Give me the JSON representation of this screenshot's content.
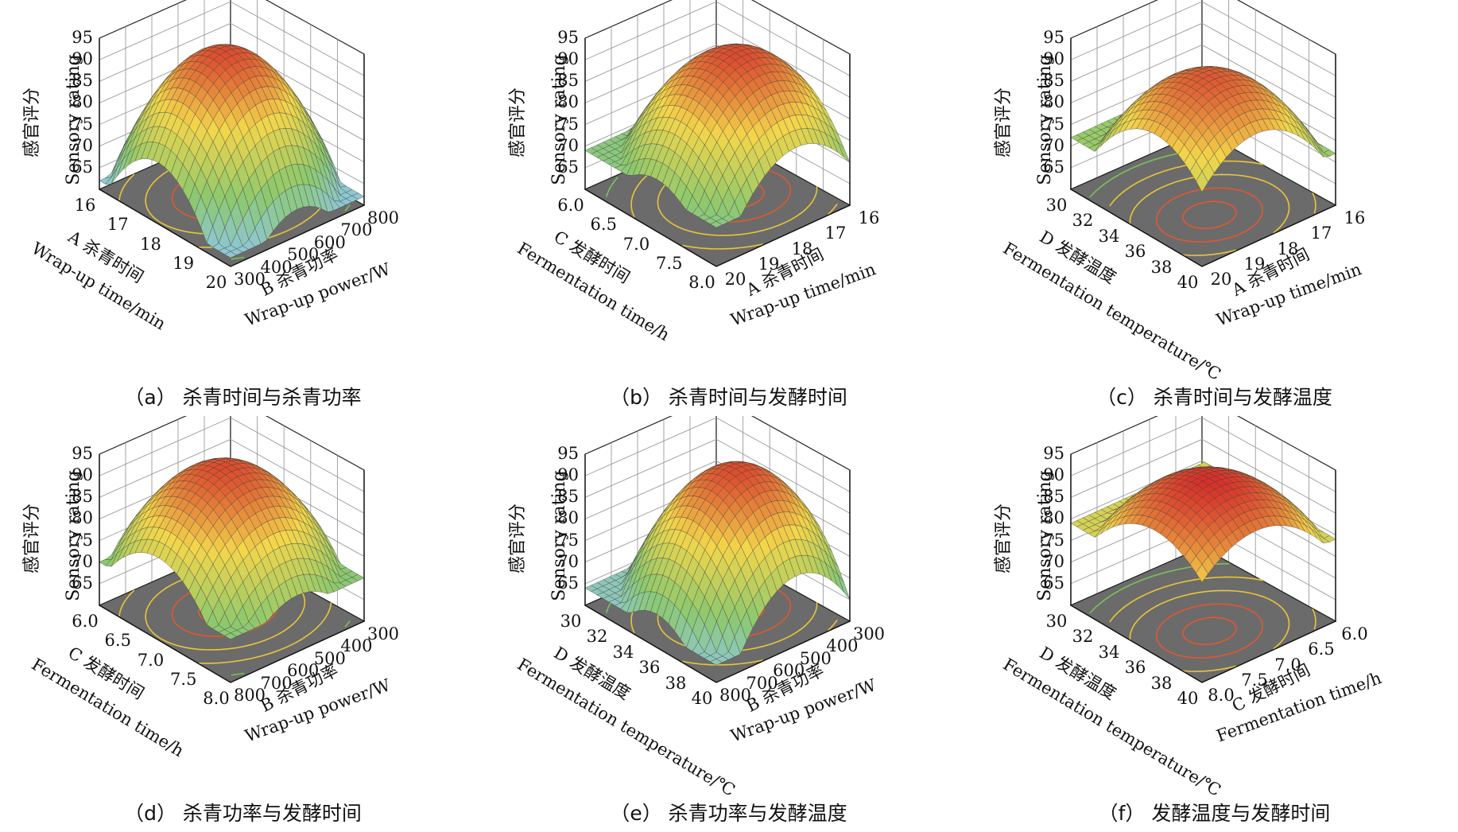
{
  "z_label_cn": "感官评分",
  "z_label_en": "Sensory rating",
  "z_ticks": [
    "65",
    "70",
    "75",
    "80",
    "85",
    "90",
    "95"
  ],
  "colors": {
    "floor": "#6b6b6b",
    "grid": "#9a9a9a",
    "high": "#d6302a",
    "mid": "#f3d64b",
    "low": "#8fc7e8"
  },
  "panels": [
    {
      "id": "a",
      "caption": "（a） 杀青时间与杀青功率",
      "left_axis": {
        "cn": "A 杀青时间",
        "en": "Wrap-up time/min",
        "ticks": [
          "16",
          "17",
          "18",
          "19",
          "20"
        ]
      },
      "right_axis": {
        "cn": "B 杀青功率",
        "en": "Wrap-up power/W",
        "ticks": [
          "300",
          "400",
          "500",
          "600",
          "700",
          "800"
        ]
      }
    },
    {
      "id": "b",
      "caption": "（b） 杀青时间与发酵时间",
      "left_axis": {
        "cn": "C 发酵时间",
        "en": "Fermentation time/h",
        "ticks": [
          "6.0",
          "6.5",
          "7.0",
          "7.5",
          "8.0"
        ]
      },
      "right_axis": {
        "cn": "A 杀青时间",
        "en": "Wrap-up time/min",
        "ticks": [
          "20",
          "19",
          "18",
          "17",
          "16"
        ]
      }
    },
    {
      "id": "c",
      "caption": "（c） 杀青时间与发酵温度",
      "left_axis": {
        "cn": "D 发酵温度",
        "en": "Fermentation temperature/℃",
        "ticks": [
          "30",
          "32",
          "34",
          "36",
          "38",
          "40"
        ]
      },
      "right_axis": {
        "cn": "A 杀青时间",
        "en": "Wrap-up time/min",
        "ticks": [
          "20",
          "19",
          "18",
          "17",
          "16"
        ]
      }
    },
    {
      "id": "d",
      "caption": "（d） 杀青功率与发酵时间",
      "left_axis": {
        "cn": "C 发酵时间",
        "en": "Fermentation time/h",
        "ticks": [
          "6.0",
          "6.5",
          "7.0",
          "7.5",
          "8.0"
        ]
      },
      "right_axis": {
        "cn": "B 杀青功率",
        "en": "Wrap-up power/W",
        "ticks": [
          "800",
          "700",
          "600",
          "500",
          "400",
          "300"
        ]
      }
    },
    {
      "id": "e",
      "caption": "（e） 杀青功率与发酵温度",
      "left_axis": {
        "cn": "D 发酵温度",
        "en": "Fermentation temperature/℃",
        "ticks": [
          "30",
          "32",
          "34",
          "36",
          "38",
          "40"
        ]
      },
      "right_axis": {
        "cn": "B 杀青功率",
        "en": "Wrap-up power/W",
        "ticks": [
          "800",
          "700",
          "600",
          "500",
          "400",
          "300"
        ]
      }
    },
    {
      "id": "f",
      "caption": "（f） 发酵温度与发酵时间",
      "left_axis": {
        "cn": "D 发酵温度",
        "en": "Fermentation temperature/℃",
        "ticks": [
          "30",
          "32",
          "34",
          "36",
          "38",
          "40"
        ]
      },
      "right_axis": {
        "cn": "C 发酵时间",
        "en": "Fermentation time/h",
        "ticks": [
          "8.0",
          "7.5",
          "7.0",
          "6.5",
          "6.0"
        ]
      }
    }
  ],
  "chart_data": [
    {
      "type": "surface",
      "panel": "a",
      "x_name": "A 杀青时间 Wrap-up time/min",
      "x_range": [
        16,
        20
      ],
      "y_name": "B 杀青功率 Wrap-up power/W",
      "y_range": [
        300,
        800
      ],
      "z_name": "Sensory rating",
      "zlim": [
        60,
        95
      ],
      "surface_peak": 93,
      "surface_min": 62
    },
    {
      "type": "surface",
      "panel": "b",
      "x_name": "C 发酵时间 Fermentation time/h",
      "x_range": [
        6.0,
        8.0
      ],
      "y_name": "A 杀青时间 Wrap-up time/min",
      "y_range": [
        16,
        20
      ],
      "z_name": "Sensory rating",
      "zlim": [
        60,
        95
      ],
      "surface_peak": 93,
      "surface_min": 69
    },
    {
      "type": "surface",
      "panel": "c",
      "x_name": "D 发酵温度 Fermentation temperature/℃",
      "x_range": [
        30,
        40
      ],
      "y_name": "A 杀青时间 Wrap-up time/min",
      "y_range": [
        16,
        20
      ],
      "z_name": "Sensory rating",
      "zlim": [
        60,
        95
      ],
      "surface_peak": 92,
      "surface_min": 72
    },
    {
      "type": "surface",
      "panel": "d",
      "x_name": "C 发酵时间 Fermentation time/h",
      "x_range": [
        6.0,
        8.0
      ],
      "y_name": "B 杀青功率 Wrap-up power/W",
      "y_range": [
        300,
        800
      ],
      "z_name": "Sensory rating",
      "zlim": [
        60,
        95
      ],
      "surface_peak": 93,
      "surface_min": 70
    },
    {
      "type": "surface",
      "panel": "e",
      "x_name": "D 发酵温度 Fermentation temperature/℃",
      "x_range": [
        30,
        40
      ],
      "y_name": "B 杀青功率 Wrap-up power/W",
      "y_range": [
        300,
        800
      ],
      "z_name": "Sensory rating",
      "zlim": [
        60,
        95
      ],
      "surface_peak": 93,
      "surface_min": 64
    },
    {
      "type": "surface",
      "panel": "f",
      "x_name": "D 发酵温度 Fermentation temperature/℃",
      "x_range": [
        30,
        40
      ],
      "y_name": "C 发酵时间 Fermentation time/h",
      "y_range": [
        6.0,
        8.0
      ],
      "z_name": "Sensory rating",
      "zlim": [
        60,
        95
      ],
      "surface_peak": 95,
      "surface_min": 79
    }
  ]
}
